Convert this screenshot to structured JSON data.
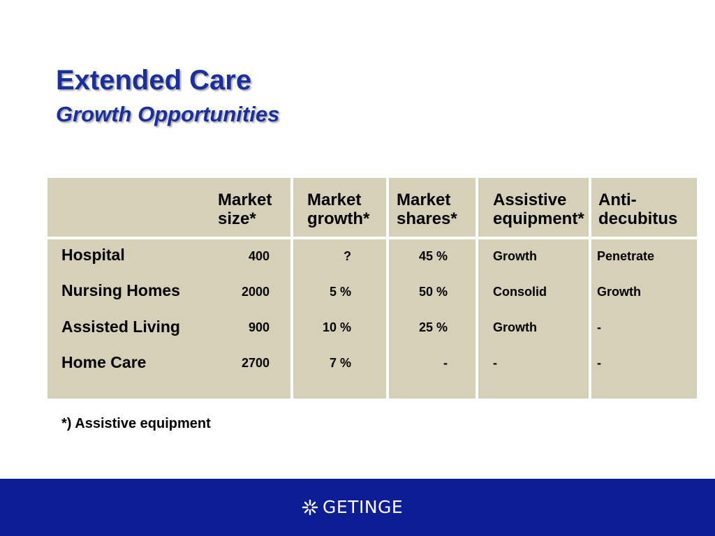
{
  "slide": {
    "title": "Extended Care",
    "subtitle": "Growth Opportunities"
  },
  "table": {
    "headers": [
      {
        "line1": "Market",
        "line2": "size*"
      },
      {
        "line1": "Market",
        "line2": "growth*"
      },
      {
        "line1": "Market",
        "line2": "shares*"
      },
      {
        "line1": "Assistive",
        "line2": "equipment*"
      },
      {
        "line1": "Anti-",
        "line2": "decubitus"
      }
    ],
    "rows": [
      {
        "label": "Hospital",
        "size": "400",
        "growth": "?",
        "shares": "45 %",
        "assistive": "Growth",
        "anti": "Penetrate"
      },
      {
        "label": "Nursing Homes",
        "size": "2000",
        "growth": "5 %",
        "shares": "50 %",
        "assistive": "Consolid",
        "anti": "Growth"
      },
      {
        "label": "Assisted Living",
        "size": "900",
        "growth": "10 %",
        "shares": "25 %",
        "assistive": "Growth",
        "anti": "-"
      },
      {
        "label": "Home Care",
        "size": "2700",
        "growth": "7 %",
        "shares": "-",
        "assistive": "-",
        "anti": "-"
      }
    ]
  },
  "footnote": "*)  Assistive equipment",
  "footer": {
    "brand": "GETINGE",
    "background_color": "#0c1d96",
    "logo_icon": "getinge-asterisk-icon"
  },
  "colors": {
    "title": "#1a2f9c",
    "cell_background": "#d6d0b8"
  }
}
